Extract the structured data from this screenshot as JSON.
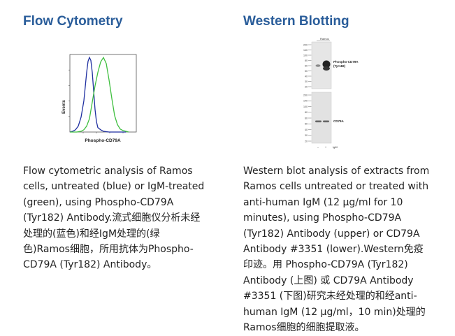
{
  "colors": {
    "title": "#2a5d9a",
    "untreated_line": "#1f2fa0",
    "treated_line": "#3fbf3f"
  },
  "flow": {
    "title": "Flow Cytometry",
    "chart_data": {
      "type": "line",
      "xlabel": "Phospho-CD79A",
      "ylabel": "Events",
      "series": [
        {
          "color": "#1f2fa0",
          "x": [
            0,
            4,
            8,
            12,
            16,
            20,
            24,
            26,
            28,
            30,
            32,
            34,
            36,
            38,
            40,
            44,
            48,
            52,
            56,
            60,
            66,
            72,
            80
          ],
          "y": [
            0,
            1,
            3,
            8,
            20,
            42,
            80,
            95,
            100,
            96,
            80,
            55,
            30,
            14,
            6,
            3,
            1,
            0.5,
            0,
            0,
            0,
            0,
            0
          ]
        },
        {
          "color": "#3fbf3f",
          "x": [
            0,
            10,
            16,
            20,
            24,
            28,
            32,
            36,
            40,
            44,
            48,
            52,
            56,
            60,
            64,
            68,
            72,
            76,
            80,
            84
          ],
          "y": [
            0,
            0,
            1,
            3,
            8,
            18,
            40,
            62,
            80,
            94,
            100,
            92,
            70,
            45,
            22,
            10,
            4,
            2,
            1,
            0
          ]
        }
      ]
    },
    "caption_lines": [
      "Flow cytometric analysis of Ramos",
      "cells, untreated (blue) or IgM-treated",
      "(green), using Phospho-CD79A",
      "(Tyr182) Antibody.流式细胞仪分析未经",
      "处理的(蓝色)和经IgM处理的(绿",
      "色)Ramos细胞，所用抗体为Phospho-",
      "CD79A (Tyr182) Antibody。"
    ]
  },
  "western": {
    "title": "Western Blotting",
    "sample_label": "Ramos",
    "markers_upper": [
      "200",
      "140",
      "100",
      "80",
      "60",
      "50",
      "40",
      "30",
      "20"
    ],
    "markers_lower": [
      "200",
      "140",
      "100",
      "80",
      "60",
      "50",
      "40",
      "30",
      "20"
    ],
    "band_label_upper": [
      "Phospho-CD79A",
      "(Tyr182)"
    ],
    "band_label_lower": "CD79A",
    "lane_labels": [
      "–",
      "+",
      "IgM"
    ],
    "caption_lines": [
      "Western blot analysis of extracts from",
      "Ramos cells untreated or treated with",
      "anti-human IgM (12 µg/ml for 10",
      "minutes), using Phospho-CD79A",
      "(Tyr182) Antibody (upper) or CD79A",
      "Antibody #3351 (lower).Western免疫",
      "印迹。用 Phospho-CD79A (Tyr182)",
      "Antibody (上图) 或 CD79A Antibody",
      "#3351 (下图)研究未经处理的和经anti-",
      "human IgM (12 µg/ml，10 min)处理的",
      "Ramos细胞的细胞提取液。"
    ]
  }
}
